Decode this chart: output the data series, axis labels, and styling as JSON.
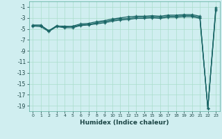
{
  "xlabel": "Humidex (Indice chaleur)",
  "background_color": "#d0eef0",
  "grid_color": "#aaddcc",
  "line_color": "#1a6666",
  "xlim": [
    -0.5,
    23.5
  ],
  "ylim": [
    -20,
    0
  ],
  "yticks": [
    -19,
    -17,
    -15,
    -13,
    -11,
    -9,
    -7,
    -5,
    -3,
    -1
  ],
  "xticks": [
    0,
    1,
    2,
    3,
    4,
    5,
    6,
    7,
    8,
    9,
    10,
    11,
    12,
    13,
    14,
    15,
    16,
    17,
    18,
    19,
    20,
    21,
    22,
    23
  ],
  "series": [
    {
      "x": [
        0,
        1,
        2,
        3,
        4,
        5,
        6,
        7,
        8,
        9,
        10,
        11,
        12,
        13,
        14,
        15,
        16,
        17,
        18,
        19,
        20,
        21,
        22,
        23
      ],
      "y": [
        -4.4,
        -4.4,
        -5.3,
        -4.5,
        -4.5,
        -4.6,
        -4.3,
        -4.2,
        -3.9,
        -3.7,
        -3.4,
        -3.2,
        -3.1,
        -2.9,
        -2.9,
        -2.8,
        -2.9,
        -2.7,
        -2.7,
        -2.6,
        -2.6,
        -2.9,
        -19.5,
        -1.4
      ]
    },
    {
      "x": [
        0,
        1,
        2,
        3,
        4,
        5,
        6,
        7,
        8,
        9,
        10,
        11,
        12,
        13,
        14,
        15,
        16,
        17,
        18,
        19,
        20,
        21,
        22,
        23
      ],
      "y": [
        -4.3,
        -4.3,
        -5.4,
        -4.4,
        -4.7,
        -4.5,
        -4.1,
        -4.0,
        -3.7,
        -3.5,
        -3.2,
        -3.0,
        -2.8,
        -2.7,
        -2.7,
        -2.6,
        -2.7,
        -2.5,
        -2.5,
        -2.4,
        -2.4,
        -2.7,
        -19.5,
        -1.1
      ]
    },
    {
      "x": [
        0,
        1,
        2,
        3,
        4,
        5,
        6,
        7,
        8,
        9,
        10,
        11,
        12,
        13,
        14,
        15,
        16,
        17,
        18,
        19,
        20,
        21,
        22,
        23
      ],
      "y": [
        -4.5,
        -4.6,
        -5.5,
        -4.6,
        -4.8,
        -4.8,
        -4.4,
        -4.3,
        -4.1,
        -3.9,
        -3.6,
        -3.4,
        -3.3,
        -3.1,
        -3.1,
        -3.0,
        -3.1,
        -2.9,
        -2.9,
        -2.8,
        -2.8,
        -3.1,
        -19.5,
        -1.7
      ]
    }
  ]
}
